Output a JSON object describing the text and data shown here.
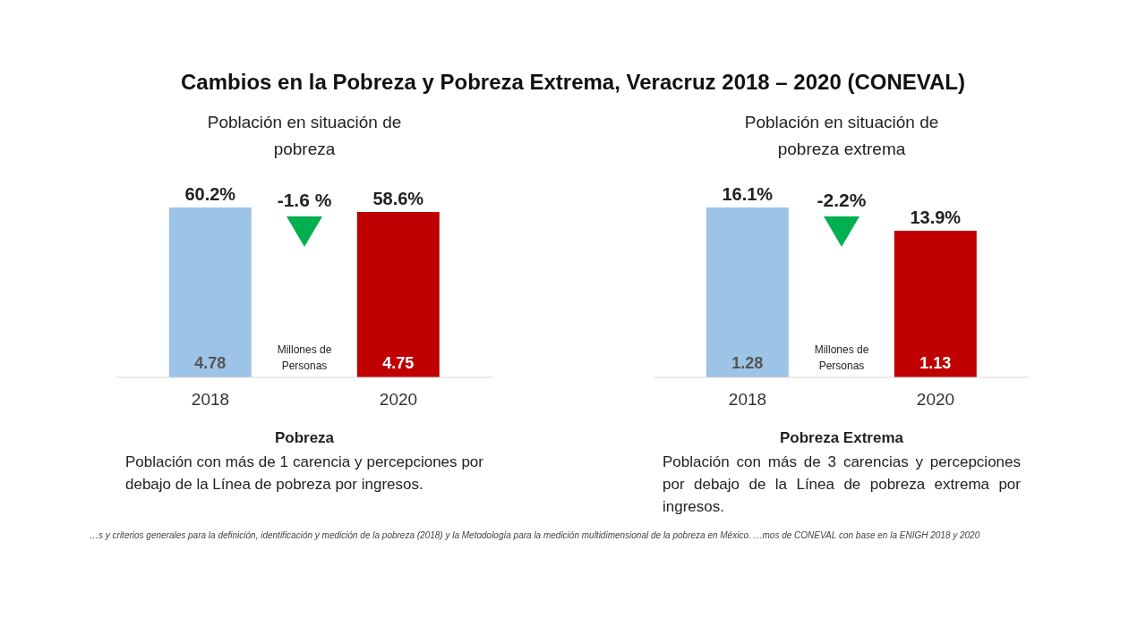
{
  "chart_data": [
    {
      "type": "bar",
      "title": "Cambios en la Pobreza y Pobreza Extrema, Veracruz 2018 – 2020 (CONEVAL)",
      "subtitle": "Población en situación de pobreza",
      "categories": [
        "2018",
        "2020"
      ],
      "values": [
        60.2,
        58.6
      ],
      "colors": [
        "#9dc3e6",
        "#c00000"
      ],
      "value_labels": [
        "60.2%",
        "58.6%"
      ],
      "annotations": [
        "-1.6 %",
        "Millones de Personas",
        "Pobreza",
        "Población con más de 1 carencia y percepciones por debajo de la Línea de pobreza por ingresos.",
        "4.78",
        "4.75"
      ]
    },
    {
      "type": "bar",
      "subtitle": "Población en situación de pobreza extrema",
      "categories": [
        "2018",
        "2020"
      ],
      "values": [
        16.1,
        13.9
      ],
      "colors": [
        "#9dc3e6",
        "#c00000"
      ],
      "value_labels": [
        "16.1%",
        "13.9%"
      ],
      "annotations": [
        "-2.2%",
        "Millones de Personas",
        "Pobreza Extrema",
        "Población con más de 3 carencias y percepciones por debajo de la Línea de pobreza extrema por ingresos.",
        "1.28",
        "1.13",
        "…s y criterios generales para la definición, identificación y medición de la pobreza (2018) y la Metodología para la medición multidimensional de la pobreza en México. …mos de CONEVAL con base en la ENIGH 2018 y 2020"
      ]
    }
  ]
}
